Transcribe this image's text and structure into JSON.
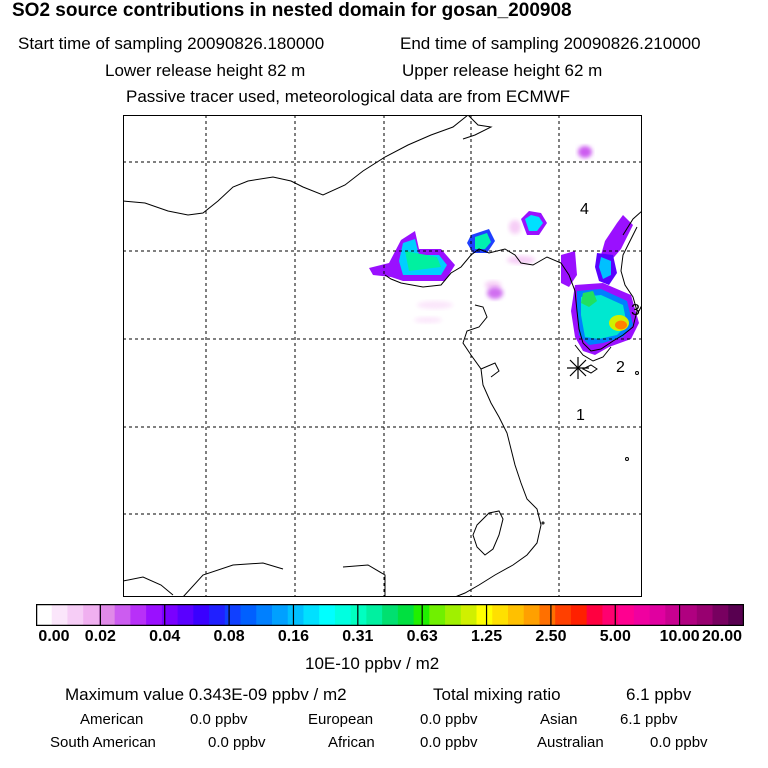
{
  "title": "SO2 source contributions in nested domain for gosan_200908",
  "sampling": {
    "start": "Start time of sampling 20090826.180000",
    "end": "End time of sampling 20090826.210000"
  },
  "release": {
    "lower": "Lower release height   82 m",
    "upper": "Upper release height   62 m"
  },
  "tracer_note": "Passive tracer used, meteorological data are from ECMWF",
  "map": {
    "markers": [
      "4",
      "3",
      "2",
      "1"
    ],
    "station_symbol": "*"
  },
  "colorbar": {
    "ticks": [
      "0.00",
      "0.02",
      "0.04",
      "0.08",
      "0.16",
      "0.31",
      "0.63",
      "1.25",
      "2.50",
      "5.00",
      "10.00",
      "20.00"
    ],
    "unit": "10E-10 ppbv / m2",
    "colors": [
      "#ffffff",
      "#fbe6fb",
      "#f6cdf6",
      "#f0b0f0",
      "#e08ae8",
      "#cc5cf0",
      "#b830f8",
      "#9a10ff",
      "#7a00ff",
      "#5a00ff",
      "#3a00ff",
      "#2020ff",
      "#1040ff",
      "#0060ff",
      "#0080ff",
      "#00a0ff",
      "#00c0ff",
      "#00e0ff",
      "#00ffff",
      "#00ffe0",
      "#00ffc0",
      "#00f0a0",
      "#00e070",
      "#00e040",
      "#20f000",
      "#70f000",
      "#a0f000",
      "#d0f000",
      "#ffff00",
      "#ffe000",
      "#ffc000",
      "#ffa000",
      "#ff7000",
      "#ff4000",
      "#ff2000",
      "#ff0040",
      "#ff0070",
      "#ff0090",
      "#f000a0",
      "#e000a0",
      "#c80090",
      "#b00080",
      "#980070",
      "#780060",
      "#580050"
    ]
  },
  "summary": {
    "max_label": "Maximum value  0.343E-09 ppbv / m2",
    "total_label": "Total mixing ratio",
    "total_value": "6.1 ppbv",
    "regions": [
      {
        "name": "American",
        "value": "0.0 ppbv"
      },
      {
        "name": "European",
        "value": "0.0 ppbv"
      },
      {
        "name": "Asian",
        "value": "6.1 ppbv"
      },
      {
        "name": "South American",
        "value": "0.0 ppbv"
      },
      {
        "name": "African",
        "value": "0.0 ppbv"
      },
      {
        "name": "Australian",
        "value": "0.0 ppbv"
      }
    ]
  }
}
